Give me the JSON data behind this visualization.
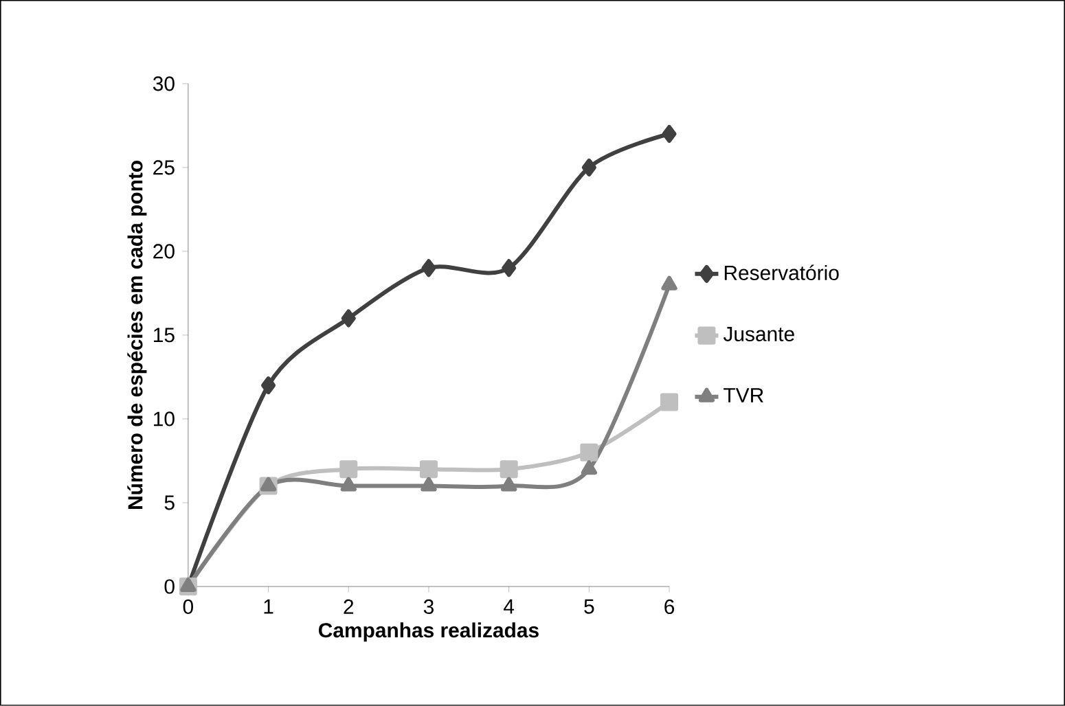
{
  "chart_data": {
    "type": "line",
    "xlabel": "Campanhas realizadas",
    "ylabel": "Número de espécies em cada ponto",
    "x": [
      0,
      1,
      2,
      3,
      4,
      5,
      6
    ],
    "series": [
      {
        "name": "Reservatório",
        "color": "#404040",
        "marker": "diamond",
        "values": [
          0,
          12,
          16,
          19,
          19,
          25,
          27
        ]
      },
      {
        "name": "Jusante",
        "color": "#bfbfbf",
        "marker": "square",
        "values": [
          0,
          6,
          7,
          7,
          7,
          8,
          11
        ]
      },
      {
        "name": "TVR",
        "color": "#7f7f7f",
        "marker": "triangle",
        "values": [
          0,
          6,
          6,
          6,
          6,
          7,
          18
        ]
      }
    ],
    "xlim": [
      0,
      6
    ],
    "xticks": [
      0,
      1,
      2,
      3,
      4,
      5,
      6
    ],
    "ylim": [
      0,
      30
    ],
    "yticks": [
      0,
      5,
      10,
      15,
      20,
      25,
      30
    ],
    "grid": false,
    "legend": "right"
  }
}
